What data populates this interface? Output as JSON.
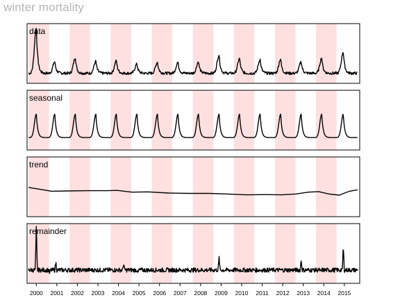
{
  "title": "winter mortality",
  "colors": {
    "shade": "#ffe0e0",
    "line": "#000000",
    "frame": "#000000",
    "title": "#b5b5b5"
  },
  "chart_data": {
    "type": "line",
    "title": "winter mortality",
    "xlabel": "",
    "ylabel": "",
    "xlim": [
      1999.6,
      2015.8
    ],
    "x_ticks": [
      "2000",
      "2001",
      "2002",
      "2003",
      "2004",
      "2005",
      "2006",
      "2007",
      "2008",
      "2009",
      "2010",
      "2011",
      "2012",
      "2013",
      "2014",
      "2015"
    ],
    "shaded_intervals": [
      [
        1999.67,
        2000.67
      ],
      [
        2001.67,
        2002.67
      ],
      [
        2003.67,
        2004.67
      ],
      [
        2005.67,
        2006.67
      ],
      [
        2007.67,
        2008.67
      ],
      [
        2009.67,
        2010.67
      ],
      [
        2011.67,
        2012.67
      ],
      [
        2013.67,
        2014.67
      ]
    ],
    "panels": [
      {
        "name": "data",
        "label": "data",
        "ylim": [
          -0.2,
          1.1
        ],
        "peak_times": [
          2000.05,
          2000.95,
          2001.95,
          2002.95,
          2003.95,
          2004.95,
          2005.95,
          2006.95,
          2007.95,
          2008.95,
          2009.95,
          2010.95,
          2011.95,
          2012.95,
          2013.95,
          2015.0
        ],
        "peak_heights": [
          1.0,
          0.27,
          0.36,
          0.28,
          0.29,
          0.22,
          0.26,
          0.26,
          0.27,
          0.42,
          0.34,
          0.32,
          0.33,
          0.27,
          0.35,
          0.49
        ],
        "baseline": 0.02,
        "end_value": -0.04
      },
      {
        "name": "seasonal",
        "label": "seasonal",
        "ylim": [
          -0.2,
          1.05
        ],
        "peak_times": [
          2000.05,
          2000.95,
          2001.95,
          2002.95,
          2003.95,
          2004.95,
          2005.95,
          2006.95,
          2007.95,
          2008.95,
          2009.95,
          2010.95,
          2011.95,
          2012.95,
          2013.95,
          2015.0
        ],
        "peak_heights": [
          0.55,
          0.55,
          0.55,
          0.55,
          0.55,
          0.55,
          0.55,
          0.55,
          0.55,
          0.55,
          0.55,
          0.55,
          0.55,
          0.55,
          0.55,
          0.55
        ],
        "baseline": 0.06,
        "end_value": 0.06
      },
      {
        "name": "trend",
        "label": "trend",
        "ylim": [
          -1,
          1
        ],
        "x": [
          1999.67,
          2000.2,
          2000.8,
          2001.5,
          2002.5,
          2003.5,
          2004.0,
          2004.7,
          2005.5,
          2006.5,
          2007.5,
          2008.5,
          2009.3,
          2010.3,
          2011.2,
          2012.0,
          2012.7,
          2013.3,
          2013.8,
          2014.3,
          2014.8,
          2015.3,
          2015.7
        ],
        "y": [
          -0.02,
          -0.08,
          -0.15,
          -0.14,
          -0.13,
          -0.13,
          -0.12,
          -0.18,
          -0.17,
          -0.21,
          -0.22,
          -0.22,
          -0.24,
          -0.27,
          -0.26,
          -0.27,
          -0.24,
          -0.18,
          -0.16,
          -0.24,
          -0.28,
          -0.15,
          -0.1
        ]
      },
      {
        "name": "remainder",
        "label": "remainder",
        "ylim": [
          -0.3,
          1.05
        ],
        "spikes_x": [
          2000.05,
          2000.7,
          2001.0,
          2004.3,
          2005.0,
          2008.95,
          2012.95,
          2013.9,
          2015.0
        ],
        "spikes_y": [
          0.95,
          -0.08,
          0.18,
          0.15,
          -0.07,
          0.28,
          0.23,
          -0.05,
          0.55
        ]
      }
    ]
  }
}
